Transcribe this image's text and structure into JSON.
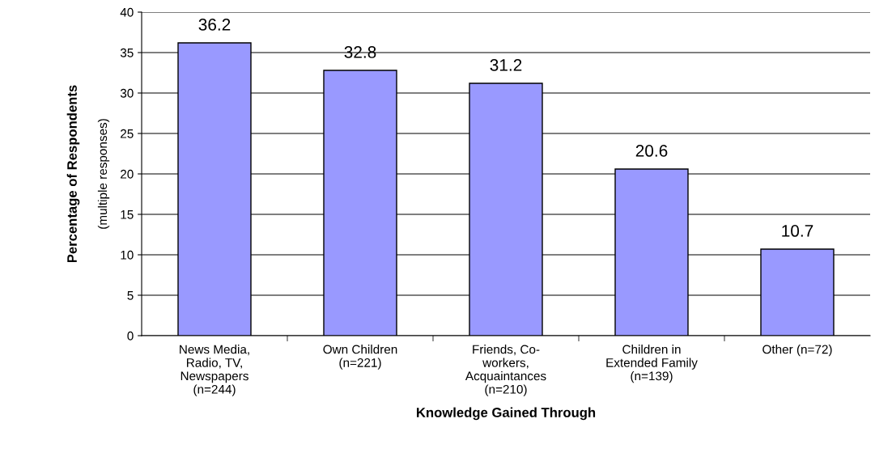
{
  "chart_data": {
    "type": "bar",
    "xlabel": "Knowledge Gained Through",
    "ylabel": "Percentage of Respondents",
    "annotations": [
      "(multiple responses)"
    ],
    "categories": [
      "News Media,\nRadio, TV,\nNewspapers\n(n=244)",
      "Own Children\n(n=221)",
      "Friends, Co-\nworkers,\nAcquaintances\n(n=210)",
      "Children in\nExtended Family\n(n=139)",
      "Other (n=72)"
    ],
    "values": [
      36.2,
      32.8,
      31.2,
      20.6,
      10.7
    ],
    "color": "#9999ff",
    "data_labels": true,
    "ylim": [
      0,
      40
    ],
    "yticks": [
      0,
      5,
      10,
      15,
      20,
      25,
      30,
      35,
      40
    ],
    "grid": "y",
    "legend": false
  }
}
